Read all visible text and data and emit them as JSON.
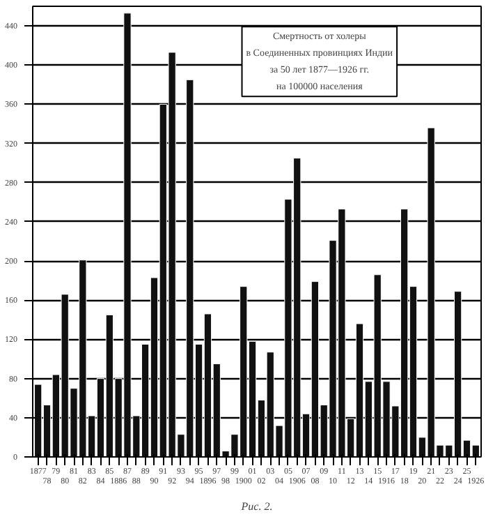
{
  "chart_data": {
    "type": "bar",
    "title": "Смертность от холеры\nв Соединенных провинциях Индии\nза 50 лет 1877—1926 гг.\nна 100000 населения",
    "categories": [
      "1877",
      "78",
      "79",
      "80",
      "81",
      "82",
      "83",
      "84",
      "85",
      "1886",
      "87",
      "88",
      "89",
      "90",
      "91",
      "92",
      "93",
      "94",
      "95",
      "1896",
      "97",
      "98",
      "99",
      "1900",
      "01",
      "02",
      "03",
      "04",
      "05",
      "1906",
      "07",
      "08",
      "09",
      "10",
      "11",
      "12",
      "13",
      "14",
      "15",
      "1916",
      "17",
      "18",
      "19",
      "20",
      "21",
      "22",
      "23",
      "24",
      "25",
      "1926"
    ],
    "values": [
      74,
      53,
      84,
      166,
      70,
      201,
      42,
      80,
      145,
      80,
      453,
      42,
      115,
      183,
      360,
      413,
      23,
      385,
      115,
      146,
      95,
      6,
      23,
      174,
      118,
      58,
      107,
      32,
      263,
      305,
      44,
      179,
      53,
      221,
      253,
      39,
      136,
      77,
      186,
      77,
      52,
      253,
      174,
      20,
      336,
      12,
      12,
      169,
      17,
      12
    ],
    "color": "#111111",
    "ylim": [
      0,
      460
    ],
    "yticks": [
      0,
      40,
      80,
      120,
      160,
      200,
      240,
      280,
      320,
      360,
      400,
      440
    ],
    "grid": "y",
    "annotations": [
      "Рис. 2."
    ]
  }
}
